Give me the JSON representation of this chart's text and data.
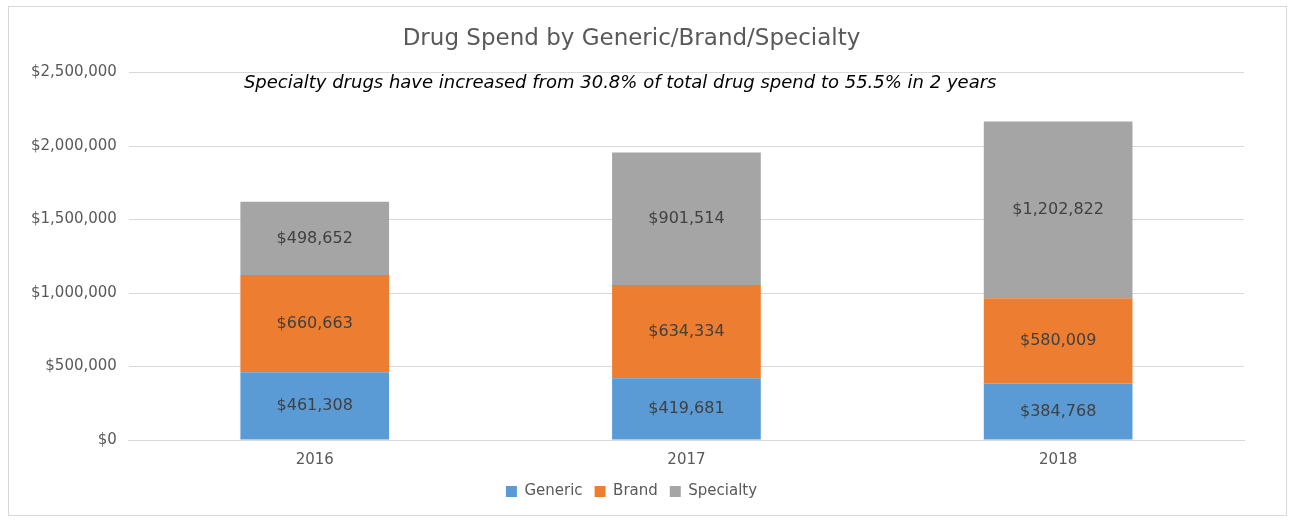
{
  "chart_data": {
    "type": "bar",
    "title": "Drug Spend by Generic/Brand/Specialty",
    "categories": [
      "2016",
      "2017",
      "2018"
    ],
    "stacked": true,
    "series": [
      {
        "name": "Generic",
        "color": "#5b9bd5",
        "values": [
          461308,
          419681,
          384768
        ],
        "value_labels": [
          "$461,308",
          "$419,681",
          "$384,768"
        ]
      },
      {
        "name": "Brand",
        "color": "#ed7d31",
        "values": [
          660663,
          634334,
          580009
        ],
        "value_labels": [
          "$660,663",
          "$634,334",
          "$580,009"
        ]
      },
      {
        "name": "Specialty",
        "color": "#a5a5a5",
        "values": [
          498652,
          901514,
          1202822
        ],
        "value_labels": [
          "$498,652",
          "$901,514",
          "$1,202,822"
        ]
      }
    ],
    "ylim": [
      0,
      2500000
    ],
    "yticks": [
      {
        "value": 0,
        "label": "$0"
      },
      {
        "value": 500000,
        "label": "$500,000"
      },
      {
        "value": 1000000,
        "label": "$1,000,000"
      },
      {
        "value": 1500000,
        "label": "$1,500,000"
      },
      {
        "value": 2000000,
        "label": "$2,000,000"
      },
      {
        "value": 2500000,
        "label": "$2,500,000"
      }
    ],
    "grid": "y",
    "legend": "bottom",
    "annotations": [
      "Specialty drugs have increased from 30.8% of total drug spend to 55.5% in 2 years"
    ]
  }
}
